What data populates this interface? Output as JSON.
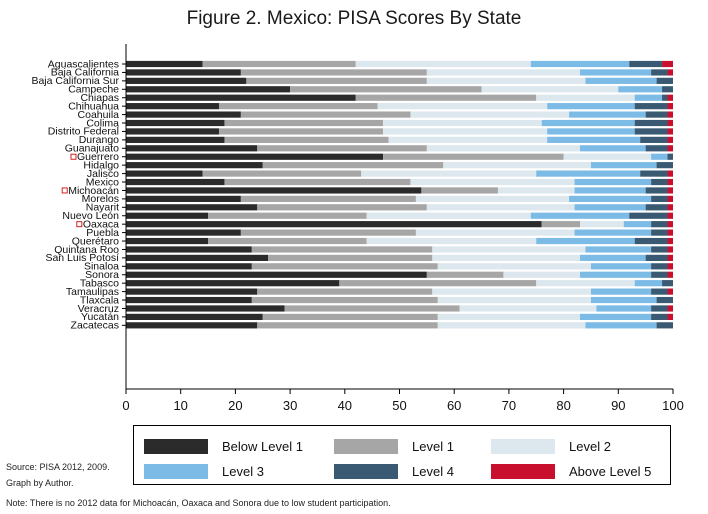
{
  "colors": {
    "below_level_1": "#2b2b2b",
    "level_1": "#a6a6a6",
    "level_2": "#dde7ee",
    "level_3": "#7cbbe6",
    "level_4": "#3a5a73",
    "above_level_5": "#c8102e",
    "marker": "#d22222"
  },
  "chart_data": {
    "type": "bar",
    "orientation": "horizontal",
    "stacked": true,
    "title": "Figure 2. Mexico: PISA Scores By State",
    "xlim": [
      0,
      100
    ],
    "xticks": [
      0,
      10,
      20,
      30,
      40,
      50,
      60,
      70,
      80,
      90,
      100
    ],
    "grid": false,
    "legend_position": "bottom",
    "categories": [
      "Aguascalientes",
      "Baja California",
      "Baja California Sur",
      "Campeche",
      "Chiapas",
      "Chihuahua",
      "Coahuila",
      "Colima",
      "Distrito Federal",
      "Durango",
      "Guanajuato",
      "Guerrero",
      "Hidalgo",
      "Jalisco",
      "Mexico",
      "Michoacán",
      "Morelos",
      "Nayarit",
      "Nuevo León",
      "Oaxaca",
      "Puebla",
      "Querétaro",
      "Quintana Roo",
      "San Luis Potosí",
      "Sinaloa",
      "Sonora",
      "Tabasco",
      "Tamaulipas",
      "Tlaxcala",
      "Veracruz",
      "Yucatán",
      "Zacatecas"
    ],
    "marked_categories": [
      "Guerrero",
      "Michoacán",
      "Oaxaca"
    ],
    "series": [
      {
        "name": "Below Level 1",
        "values": [
          14,
          21,
          22,
          30,
          42,
          17,
          21,
          18,
          17,
          18,
          24,
          47,
          25,
          14,
          18,
          54,
          21,
          24,
          15,
          76,
          21,
          15,
          23,
          26,
          23,
          55,
          39,
          24,
          23,
          29,
          25,
          24
        ]
      },
      {
        "name": "Level 1",
        "values": [
          28,
          34,
          33,
          35,
          33,
          29,
          31,
          29,
          30,
          30,
          31,
          33,
          33,
          29,
          34,
          14,
          32,
          31,
          29,
          7,
          32,
          29,
          33,
          30,
          34,
          14,
          36,
          32,
          34,
          32,
          32,
          33
        ]
      },
      {
        "name": "Level 2",
        "values": [
          32,
          28,
          29,
          25,
          18,
          31,
          29,
          29,
          30,
          29,
          28,
          16,
          27,
          32,
          30,
          14,
          28,
          27,
          30,
          8,
          29,
          31,
          28,
          27,
          28,
          14,
          18,
          29,
          28,
          25,
          26,
          27
        ]
      },
      {
        "name": "Level 3",
        "values": [
          18,
          13,
          13,
          8,
          5,
          16,
          14,
          17,
          16,
          17,
          12,
          3,
          12,
          19,
          14,
          13,
          15,
          13,
          18,
          5,
          14,
          18,
          12,
          12,
          11,
          13,
          5,
          11,
          12,
          10,
          13,
          13
        ]
      },
      {
        "name": "Level 4",
        "values": [
          6,
          3,
          3,
          2,
          1,
          6,
          4,
          6,
          6,
          5,
          4,
          1,
          3,
          5,
          3,
          4,
          3,
          4,
          7,
          3,
          3,
          6,
          3,
          4,
          3,
          3,
          2,
          3,
          3,
          3,
          3,
          3
        ]
      },
      {
        "name": "Above Level 5",
        "values": [
          2,
          1,
          0,
          0,
          1,
          1,
          1,
          1,
          1,
          1,
          1,
          0,
          0,
          1,
          1,
          1,
          1,
          1,
          1,
          1,
          1,
          1,
          1,
          1,
          1,
          1,
          0,
          1,
          0,
          1,
          1,
          0
        ]
      }
    ]
  },
  "legend": {
    "labels": [
      "Below Level 1",
      "Level 1",
      "Level 2",
      "Level 3",
      "Level 4",
      "Above Level 5"
    ]
  },
  "notes": {
    "source": "Source: PISA 2012, 2009.",
    "graph_by": "Graph by Author.",
    "note": "Note: There is no 2012 data for Michoacán, Oaxaca and Sonora due to low student participation."
  }
}
